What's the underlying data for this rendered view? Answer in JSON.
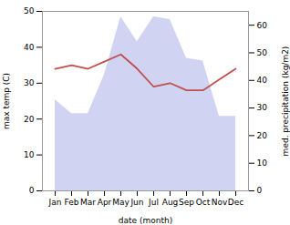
{
  "chart_data": {
    "type": "line",
    "xlabel": "date (month)",
    "ylabel": "max temp (C)",
    "y2label": "med. precipitation (kg/m2)",
    "categories": [
      "Jan",
      "Feb",
      "Mar",
      "Apr",
      "May",
      "Jun",
      "Jul",
      "Aug",
      "Sep",
      "Oct",
      "Nov",
      "Dec"
    ],
    "series": [
      {
        "type": "area",
        "axis": "y2",
        "color": "#c8cdf0",
        "values": [
          33,
          28,
          28,
          42,
          63,
          54,
          63,
          62,
          48,
          47,
          27,
          27
        ]
      },
      {
        "type": "line",
        "color": "#c0504d",
        "values": [
          34,
          35,
          34,
          36,
          38,
          34,
          29,
          30,
          28,
          28,
          31,
          34
        ]
      }
    ],
    "ylim": [
      0,
      50
    ],
    "yticks": [
      0,
      10,
      20,
      30,
      40,
      50
    ],
    "y2lim": [
      0,
      65
    ],
    "y2ticks": [
      0,
      10,
      20,
      30,
      40,
      50,
      60
    ],
    "grid": false
  }
}
